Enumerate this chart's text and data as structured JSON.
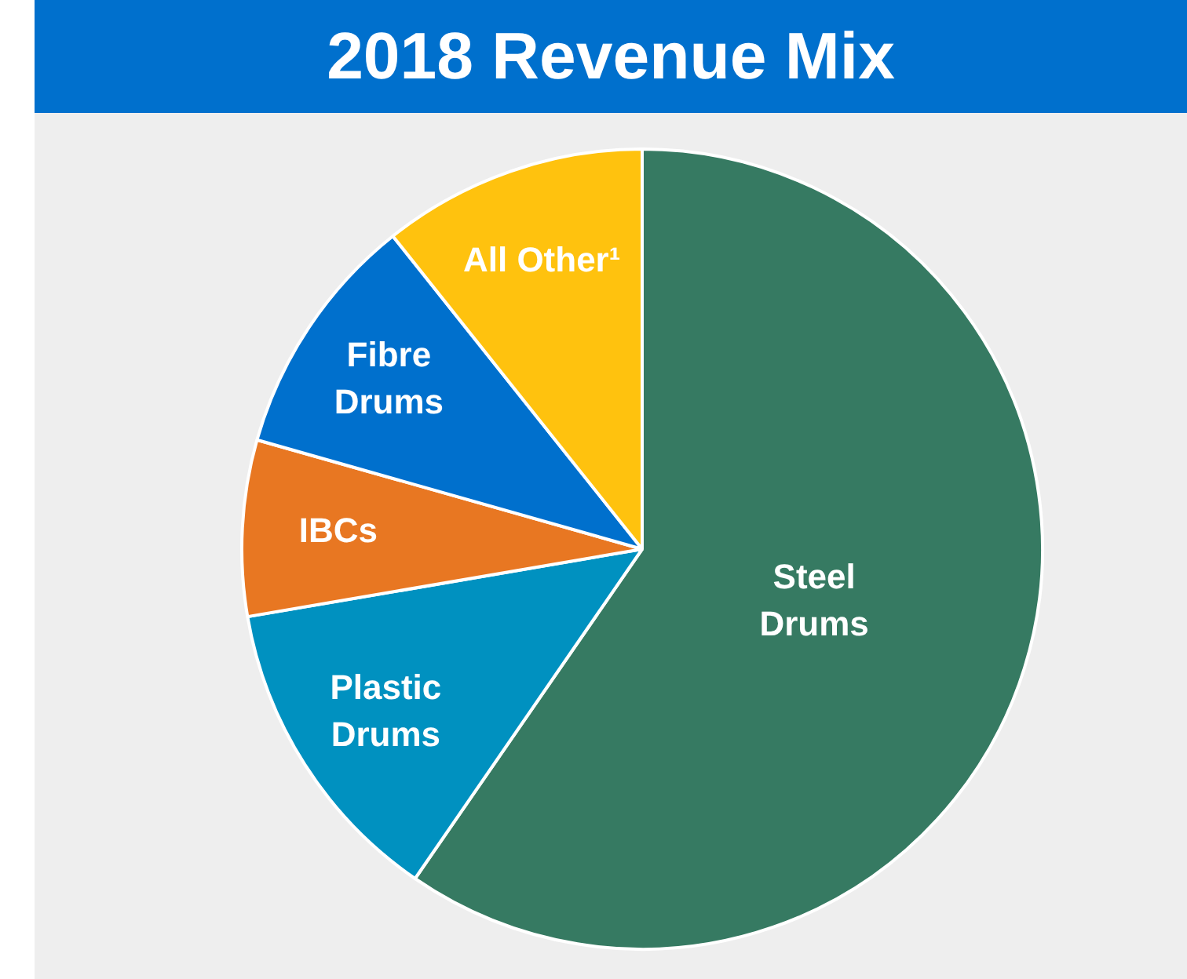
{
  "chart_data": {
    "type": "pie",
    "title": "2018 Revenue Mix",
    "categories": [
      "Steel Drums",
      "Plastic Drums",
      "IBCs",
      "Fibre Drums",
      "All Other¹"
    ],
    "values": [
      59.6,
      12.7,
      7.1,
      9.9,
      10.7
    ],
    "colors": [
      "#367a62",
      "#0091c0",
      "#e87722",
      "#0070cd",
      "#ffc20e"
    ],
    "legend": false
  }
}
